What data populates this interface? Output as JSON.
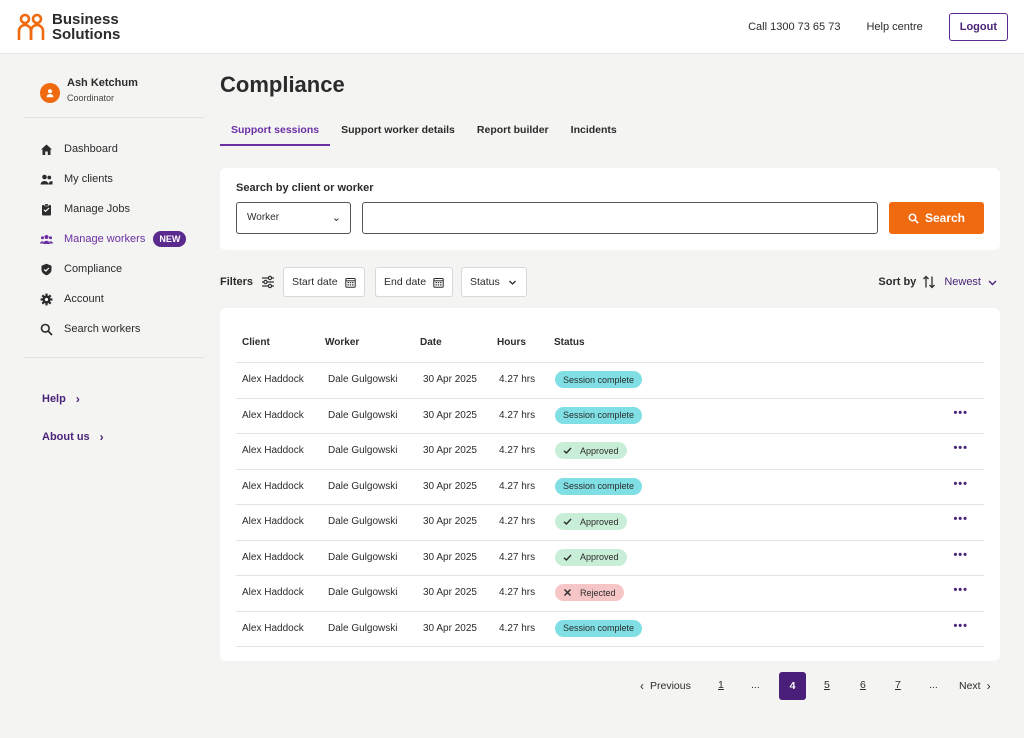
{
  "header": {
    "brand_line1": "Business",
    "brand_line2": "Solutions",
    "phone": "Call 1300 73 65 73",
    "help": "Help centre",
    "logout": "Logout",
    "brand_color": "#f06a0f"
  },
  "profile": {
    "name": "Ash Ketchum",
    "role": "Coordinator"
  },
  "sidebar": {
    "items": [
      {
        "label": "Dashboard",
        "icon": "home-icon"
      },
      {
        "label": "My clients",
        "icon": "users-icon"
      },
      {
        "label": "Manage Jobs",
        "icon": "clipboard-icon"
      },
      {
        "label": "Manage workers",
        "icon": "group-icon",
        "badge": "NEW",
        "active": true
      },
      {
        "label": "Compliance",
        "icon": "shield-icon"
      },
      {
        "label": "Account",
        "icon": "gear-icon"
      },
      {
        "label": "Search workers",
        "icon": "search-icon"
      }
    ],
    "help": "Help",
    "about": "About us"
  },
  "main": {
    "title": "Compliance",
    "tabs": [
      "Support sessions",
      "Support worker details",
      "Report builder",
      "Incidents"
    ],
    "search": {
      "label": "Search by client or worker",
      "select_value": "Worker",
      "input_value": "",
      "button": "Search"
    },
    "filters": {
      "label": "Filters",
      "start_date": "Start date",
      "end_date": "End date",
      "status": "Status"
    },
    "sort": {
      "label": "Sort by",
      "value": "Newest"
    },
    "table": {
      "columns": [
        "Client",
        "Worker",
        "Date",
        "Hours",
        "Status"
      ],
      "rows": [
        {
          "client": "Alex Haddock",
          "worker": "Dale Gulgowski",
          "date": "30 Apr 2025",
          "hours": "4.27 hrs",
          "status": "Session complete",
          "kind": "session",
          "more": false
        },
        {
          "client": "Alex Haddock",
          "worker": "Dale Gulgowski",
          "date": "30 Apr 2025",
          "hours": "4.27 hrs",
          "status": "Session complete",
          "kind": "session",
          "more": true
        },
        {
          "client": "Alex Haddock",
          "worker": "Dale Gulgowski",
          "date": "30 Apr 2025",
          "hours": "4.27 hrs",
          "status": "Approved",
          "kind": "approved",
          "more": true
        },
        {
          "client": "Alex Haddock",
          "worker": "Dale Gulgowski",
          "date": "30 Apr 2025",
          "hours": "4.27 hrs",
          "status": "Session complete",
          "kind": "session",
          "more": true
        },
        {
          "client": "Alex Haddock",
          "worker": "Dale Gulgowski",
          "date": "30 Apr 2025",
          "hours": "4.27 hrs",
          "status": "Approved",
          "kind": "approved",
          "more": true
        },
        {
          "client": "Alex Haddock",
          "worker": "Dale Gulgowski",
          "date": "30 Apr 2025",
          "hours": "4.27 hrs",
          "status": "Approved",
          "kind": "approved",
          "more": true
        },
        {
          "client": "Alex Haddock",
          "worker": "Dale Gulgowski",
          "date": "30 Apr 2025",
          "hours": "4.27 hrs",
          "status": "Rejected",
          "kind": "rejected",
          "more": true
        },
        {
          "client": "Alex Haddock",
          "worker": "Dale Gulgowski",
          "date": "30 Apr 2025",
          "hours": "4.27 hrs",
          "status": "Session complete",
          "kind": "session",
          "more": true
        }
      ]
    }
  },
  "pagination": {
    "previous": "Previous",
    "next": "Next",
    "pages": [
      "1",
      "...",
      "4",
      "5",
      "6",
      "7",
      "..."
    ],
    "current": "4"
  }
}
